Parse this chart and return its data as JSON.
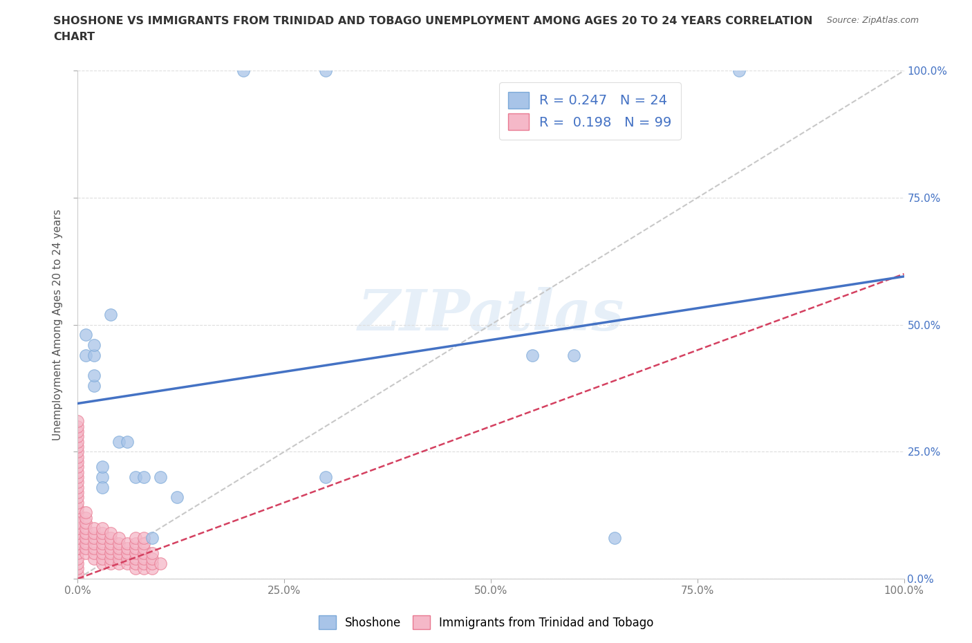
{
  "title_line1": "SHOSHONE VS IMMIGRANTS FROM TRINIDAD AND TOBAGO UNEMPLOYMENT AMONG AGES 20 TO 24 YEARS CORRELATION",
  "title_line2": "CHART",
  "source": "Source: ZipAtlas.com",
  "ylabel": "Unemployment Among Ages 20 to 24 years",
  "xlim": [
    0,
    1.0
  ],
  "ylim": [
    0,
    1.0
  ],
  "xticks": [
    0,
    0.25,
    0.5,
    0.75,
    1.0
  ],
  "xtick_labels": [
    "0.0%",
    "25.0%",
    "50.0%",
    "75.0%",
    "100.0%"
  ],
  "ytick_labels": [
    "0.0%",
    "25.0%",
    "50.0%",
    "75.0%",
    "100.0%"
  ],
  "yticks": [
    0,
    0.25,
    0.5,
    0.75,
    1.0
  ],
  "shoshone_color": "#A8C4E8",
  "shoshone_edge_color": "#7AA8D8",
  "immigrant_color": "#F5B8C8",
  "immigrant_edge_color": "#E87890",
  "shoshone_R": 0.247,
  "shoshone_N": 24,
  "immigrant_R": 0.198,
  "immigrant_N": 99,
  "legend_shoshone": "Shoshone",
  "legend_immigrant": "Immigrants from Trinidad and Tobago",
  "watermark": "ZIPatlas",
  "shoshone_x": [
    0.01,
    0.01,
    0.02,
    0.02,
    0.02,
    0.02,
    0.03,
    0.03,
    0.03,
    0.04,
    0.05,
    0.06,
    0.07,
    0.08,
    0.09,
    0.1,
    0.12,
    0.3,
    0.55,
    0.6,
    0.65,
    0.8,
    0.3,
    0.2
  ],
  "shoshone_y": [
    0.48,
    0.44,
    0.44,
    0.46,
    0.38,
    0.4,
    0.2,
    0.22,
    0.18,
    0.52,
    0.27,
    0.27,
    0.2,
    0.2,
    0.08,
    0.2,
    0.16,
    0.2,
    0.44,
    0.44,
    0.08,
    1.0,
    1.0,
    1.0
  ],
  "immigrant_x": [
    0.0,
    0.0,
    0.0,
    0.0,
    0.0,
    0.0,
    0.0,
    0.0,
    0.0,
    0.0,
    0.0,
    0.0,
    0.0,
    0.0,
    0.0,
    0.0,
    0.0,
    0.0,
    0.0,
    0.0,
    0.0,
    0.0,
    0.0,
    0.0,
    0.0,
    0.0,
    0.0,
    0.0,
    0.0,
    0.0,
    0.0,
    0.0,
    0.0,
    0.0,
    0.0,
    0.0,
    0.0,
    0.0,
    0.01,
    0.01,
    0.01,
    0.01,
    0.01,
    0.01,
    0.01,
    0.01,
    0.01,
    0.02,
    0.02,
    0.02,
    0.02,
    0.02,
    0.02,
    0.02,
    0.03,
    0.03,
    0.03,
    0.03,
    0.03,
    0.03,
    0.03,
    0.03,
    0.04,
    0.04,
    0.04,
    0.04,
    0.04,
    0.04,
    0.04,
    0.05,
    0.05,
    0.05,
    0.05,
    0.05,
    0.05,
    0.06,
    0.06,
    0.06,
    0.06,
    0.06,
    0.07,
    0.07,
    0.07,
    0.07,
    0.07,
    0.07,
    0.07,
    0.08,
    0.08,
    0.08,
    0.08,
    0.08,
    0.08,
    0.08,
    0.09,
    0.09,
    0.09,
    0.09,
    0.1
  ],
  "immigrant_y": [
    0.0,
    0.01,
    0.02,
    0.03,
    0.04,
    0.05,
    0.06,
    0.07,
    0.08,
    0.09,
    0.1,
    0.11,
    0.12,
    0.13,
    0.14,
    0.15,
    0.16,
    0.17,
    0.18,
    0.19,
    0.2,
    0.21,
    0.22,
    0.23,
    0.24,
    0.25,
    0.26,
    0.27,
    0.28,
    0.29,
    0.3,
    0.31,
    0.06,
    0.07,
    0.08,
    0.09,
    0.1,
    0.11,
    0.05,
    0.06,
    0.07,
    0.08,
    0.09,
    0.1,
    0.11,
    0.12,
    0.13,
    0.04,
    0.05,
    0.06,
    0.07,
    0.08,
    0.09,
    0.1,
    0.03,
    0.04,
    0.05,
    0.06,
    0.07,
    0.08,
    0.09,
    0.1,
    0.03,
    0.04,
    0.05,
    0.06,
    0.07,
    0.08,
    0.09,
    0.03,
    0.04,
    0.05,
    0.06,
    0.07,
    0.08,
    0.03,
    0.04,
    0.05,
    0.06,
    0.07,
    0.02,
    0.03,
    0.04,
    0.05,
    0.06,
    0.07,
    0.08,
    0.02,
    0.03,
    0.04,
    0.05,
    0.06,
    0.07,
    0.08,
    0.02,
    0.03,
    0.04,
    0.05,
    0.03
  ],
  "shoshone_line_color": "#4472C4",
  "shoshone_line_x0": 0.0,
  "shoshone_line_y0": 0.345,
  "shoshone_line_x1": 1.0,
  "shoshone_line_y1": 0.595,
  "immigrant_line_color": "#D44060",
  "immigrant_line_x0": 0.0,
  "immigrant_line_y0": 0.0,
  "immigrant_line_x1": 1.0,
  "immigrant_line_y1": 0.6,
  "ref_line_color": "#C8C8C8",
  "right_axis_color": "#4472C4",
  "legend_label_color": "#4472C4",
  "grid_color": "#DDDDDD",
  "title_color": "#333333",
  "source_color": "#666666"
}
